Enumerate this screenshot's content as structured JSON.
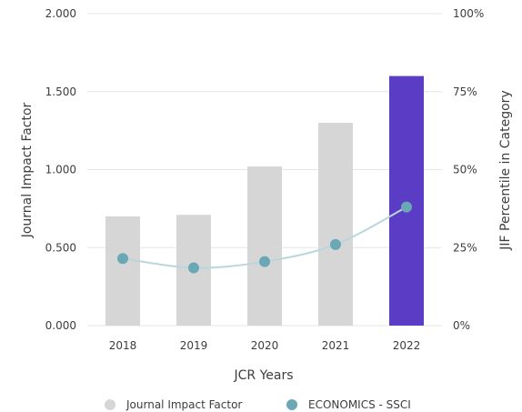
{
  "chart_data": {
    "type": "bar",
    "categories": [
      "2018",
      "2019",
      "2020",
      "2021",
      "2022"
    ],
    "xlabel": "JCR Years",
    "ylabel": "Journal Impact Factor",
    "y2label": "JIF Percentile in Category",
    "ylim": [
      0,
      2
    ],
    "y2lim": [
      0,
      100
    ],
    "yticks": [
      "0.000",
      "0.500",
      "1.000",
      "1.500",
      "2.000"
    ],
    "y2ticks": [
      "0%",
      "25%",
      "50%",
      "75%",
      "100%"
    ],
    "grid": true,
    "legend_position": "bottom",
    "series": [
      {
        "name": "Journal Impact Factor",
        "type": "bar",
        "axis": "left",
        "values": [
          0.7,
          0.71,
          1.02,
          1.3,
          1.6
        ],
        "color": "#d6d6d6",
        "highlight_color": "#5b3cc4",
        "highlight_index": 4
      },
      {
        "name": "ECONOMICS - SSCI",
        "type": "line",
        "axis": "right",
        "values": [
          21.5,
          18.5,
          20.5,
          26.0,
          38.0
        ],
        "color": "#6aa8b5",
        "line_color": "#b9d6dc"
      }
    ]
  }
}
